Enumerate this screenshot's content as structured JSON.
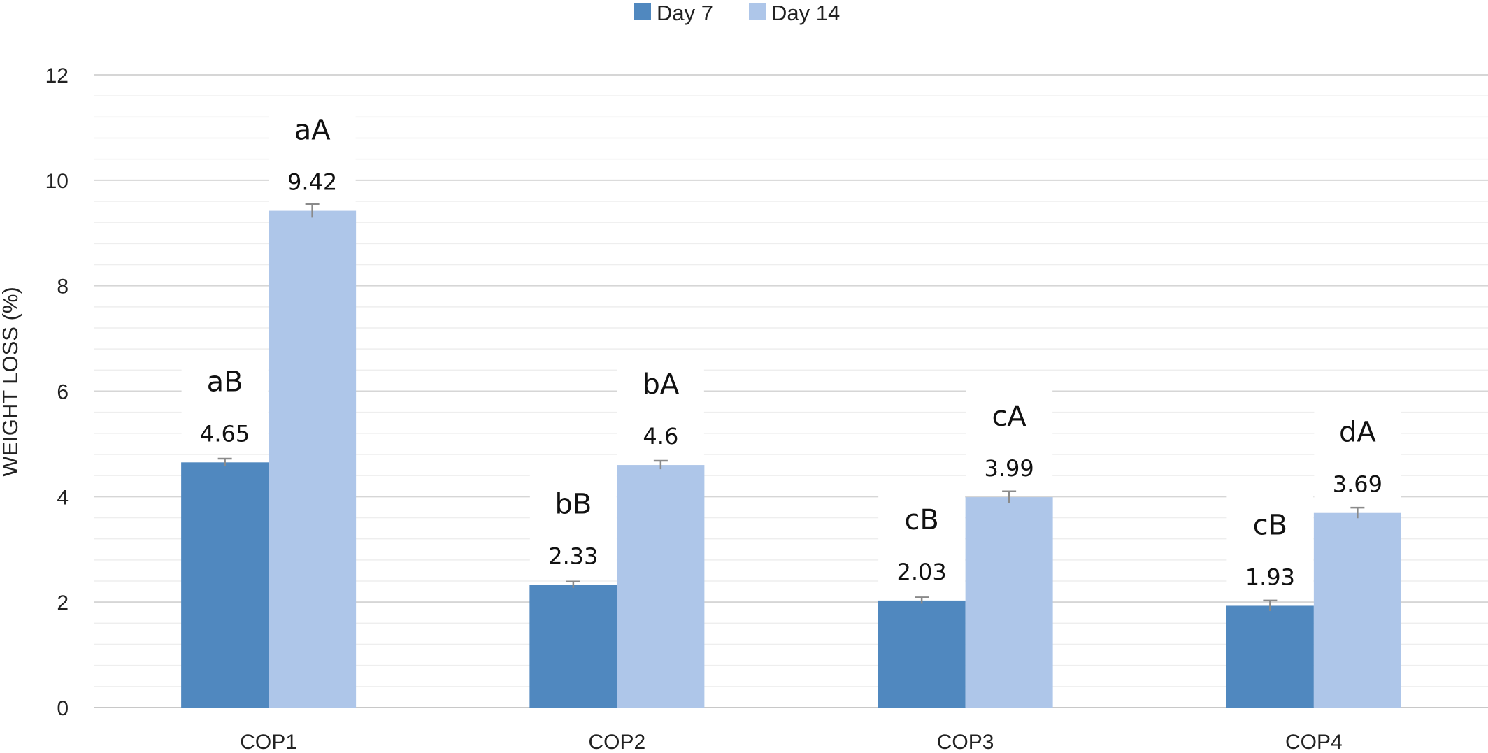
{
  "chart_data": {
    "type": "bar",
    "categories": [
      "COP1",
      "COP2",
      "COP3",
      "COP4"
    ],
    "series": [
      {
        "name": "Day 7",
        "color": "#5088bf",
        "values": [
          4.65,
          2.33,
          2.03,
          1.93
        ],
        "value_labels": [
          "4.65",
          "2.33",
          "2.03",
          "1.93"
        ],
        "letters": [
          "aB",
          "bB",
          "cB",
          "cB"
        ],
        "errors": [
          0.07,
          0.06,
          0.06,
          0.1
        ]
      },
      {
        "name": "Day 14",
        "color": "#aec6e9",
        "values": [
          9.42,
          4.6,
          3.99,
          3.69
        ],
        "value_labels": [
          "9.42",
          "4.6",
          "3.99",
          "3.69"
        ],
        "letters": [
          "aA",
          "bA",
          "cA",
          "dA"
        ],
        "errors": [
          0.13,
          0.08,
          0.11,
          0.1
        ]
      }
    ],
    "title": "",
    "xlabel": "",
    "ylabel": "WEIGHT LOSS (%)",
    "ylim": [
      0,
      12
    ],
    "yticks": [
      0,
      2,
      4,
      6,
      8,
      10,
      12
    ],
    "grid": true,
    "error_bars": true,
    "legend_position": "top-center"
  }
}
